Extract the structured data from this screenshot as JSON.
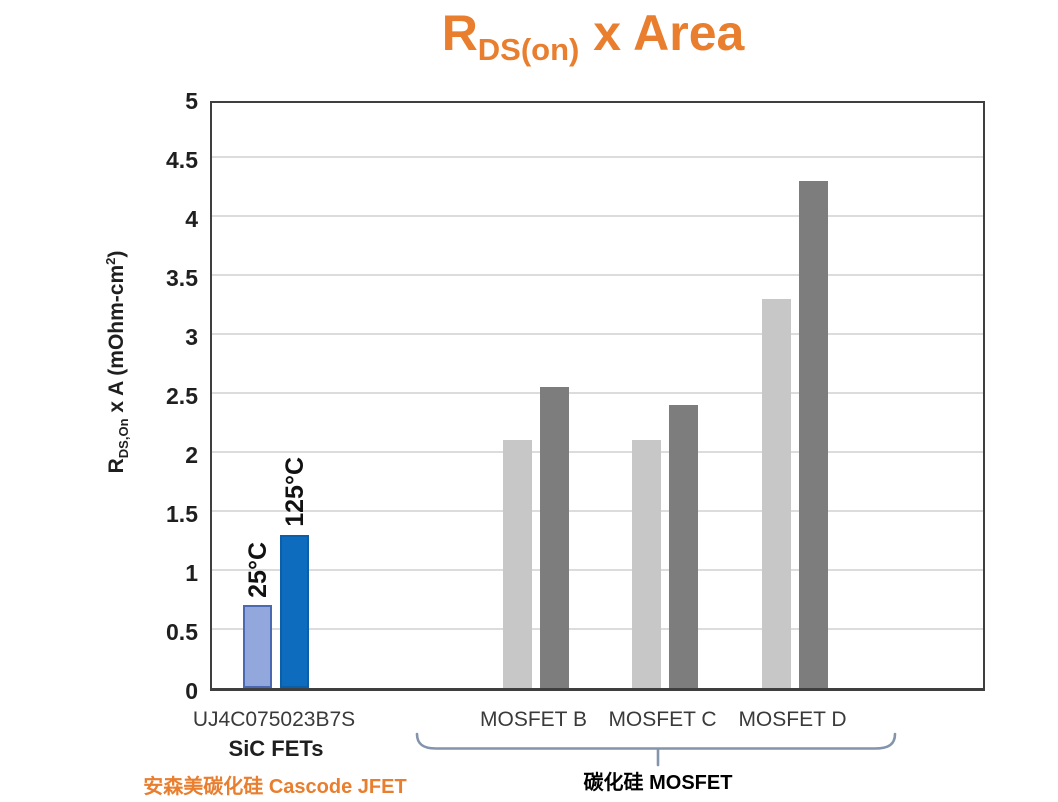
{
  "chart_data": {
    "type": "bar",
    "title": "R_DS(on) x Area",
    "title_parts": {
      "prefix": "R",
      "sub": "DS(on)",
      "suffix": " x Area"
    },
    "title_color": "#E87E2E",
    "ylabel": "R_DS,On x A (mOhm-cm²)",
    "ylabel_parts": {
      "prefix": "R",
      "sub": "DS,On",
      "mid": " x A (mOhm-cm",
      "sup": "2",
      "close": ")"
    },
    "ylim": [
      0,
      5
    ],
    "ytick_step": 0.5,
    "grid": true,
    "legend_position": "rotated labels above first category bars",
    "categories": [
      "UJ4C075023B7S",
      "MOSFET B",
      "MOSFET C",
      "MOSFET D"
    ],
    "series": [
      {
        "name": "25°C",
        "values": [
          0.7,
          2.1,
          2.1,
          3.3
        ],
        "fills": [
          "#92A7DB",
          "#C7C7C7",
          "#C7C7C7",
          "#C7C7C7"
        ],
        "borders": [
          "#4A69B0",
          null,
          null,
          null
        ]
      },
      {
        "name": "125°C",
        "values": [
          1.3,
          2.55,
          2.4,
          4.3
        ],
        "fills": [
          "#0D6CBD",
          "#7D7D7D",
          "#7D7D7D",
          "#7D7D7D"
        ],
        "borders": [
          "#0A5FA8",
          null,
          null,
          null
        ]
      }
    ]
  },
  "annotations": {
    "category_sublabel": "SiC FETs",
    "jfet_footnote": "安森美碳化硅 Cascode JFET",
    "jfet_footnote_color": "#E87E2E",
    "brace_label": "碳化硅 MOSFET",
    "brace_color": "#8394AB"
  }
}
